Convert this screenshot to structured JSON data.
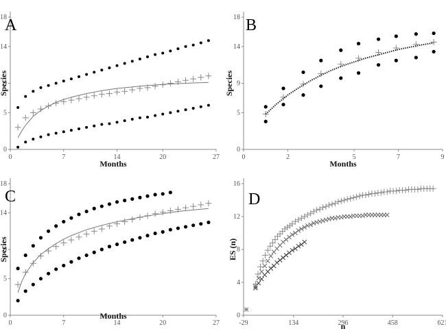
{
  "chart_data": [
    {
      "panel_label": "A",
      "type": "scatter",
      "xlabel": "Months",
      "ylabel": "Species",
      "xticks": [
        "0",
        "7",
        "14",
        "20",
        "27"
      ],
      "yticks": [
        "0",
        "5",
        "9",
        "14",
        "18"
      ],
      "xlim": [
        0,
        27
      ],
      "ylim": [
        0,
        18
      ],
      "grid": false,
      "series": [
        {
          "marker": "dot",
          "color": "#000000",
          "x": [
            1,
            2,
            3,
            4,
            5,
            6,
            7,
            8,
            9,
            10,
            11,
            12,
            13,
            14,
            15,
            16,
            17,
            18,
            19,
            20,
            21,
            22,
            23,
            24,
            25,
            26
          ],
          "y": [
            5.7,
            7.2,
            7.9,
            8.4,
            8.7,
            9.0,
            9.3,
            9.6,
            9.9,
            10.2,
            10.5,
            10.8,
            11.1,
            11.4,
            11.7,
            12.0,
            12.3,
            12.6,
            12.9,
            13.1,
            13.4,
            13.7,
            14.0,
            14.2,
            14.5,
            14.8
          ]
        },
        {
          "marker": "plus",
          "color": "#888888",
          "x": [
            1,
            2,
            3,
            4,
            5,
            6,
            7,
            8,
            9,
            10,
            11,
            12,
            13,
            14,
            15,
            16,
            17,
            18,
            19,
            20,
            21,
            22,
            23,
            24,
            25,
            26
          ],
          "y": [
            3.0,
            4.3,
            5.0,
            5.5,
            5.9,
            6.3,
            6.5,
            6.7,
            6.9,
            7.1,
            7.3,
            7.5,
            7.6,
            7.8,
            7.9,
            8.1,
            8.3,
            8.4,
            8.6,
            8.8,
            9.0,
            9.2,
            9.4,
            9.6,
            9.8,
            10.0
          ]
        },
        {
          "marker": "dot",
          "color": "#000000",
          "x": [
            1,
            2,
            3,
            4,
            5,
            6,
            7,
            8,
            9,
            10,
            11,
            12,
            13,
            14,
            15,
            16,
            17,
            18,
            19,
            20,
            21,
            22,
            23,
            24,
            25,
            26
          ],
          "y": [
            0.3,
            1.0,
            1.4,
            1.7,
            2.0,
            2.2,
            2.4,
            2.6,
            2.8,
            3.0,
            3.2,
            3.4,
            3.5,
            3.7,
            3.9,
            4.1,
            4.3,
            4.4,
            4.6,
            4.8,
            5.0,
            5.2,
            5.4,
            5.6,
            5.8,
            6.0
          ]
        },
        {
          "marker": "line",
          "color": "#777777",
          "x": [
            1,
            1.5,
            2,
            3,
            4,
            5,
            6,
            7,
            8,
            10,
            12,
            14,
            16,
            18,
            20,
            22,
            24,
            26
          ],
          "y": [
            1.6,
            2.5,
            3.3,
            4.5,
            5.3,
            5.9,
            6.4,
            6.8,
            7.1,
            7.6,
            8.0,
            8.3,
            8.5,
            8.7,
            8.85,
            8.95,
            9.05,
            9.1
          ]
        }
      ]
    },
    {
      "panel_label": "B",
      "type": "scatter",
      "xlabel": "Months",
      "ylabel": "Species",
      "xticks": [
        "0",
        "2",
        "5",
        "7",
        "9"
      ],
      "yticks": [
        "0",
        "5",
        "9",
        "14",
        "18"
      ],
      "xlim": [
        0,
        9
      ],
      "ylim": [
        0,
        18
      ],
      "grid": false,
      "series": [
        {
          "marker": "dot",
          "color": "#000000",
          "x": [
            1,
            1.8,
            2.7,
            3.5,
            4.4,
            5.2,
            6.1,
            6.9,
            7.8,
            8.6
          ],
          "y": [
            5.8,
            8.3,
            10.5,
            12.1,
            13.5,
            14.4,
            15.0,
            15.4,
            15.7,
            15.8
          ]
        },
        {
          "marker": "plus",
          "color": "#888888",
          "x": [
            1,
            1.8,
            2.7,
            3.5,
            4.4,
            5.2,
            6.1,
            6.9,
            7.8,
            8.6
          ],
          "y": [
            4.8,
            7.1,
            8.9,
            10.3,
            11.6,
            12.4,
            13.2,
            13.8,
            14.3,
            14.6
          ]
        },
        {
          "marker": "dot",
          "color": "#000000",
          "x": [
            1,
            1.8,
            2.7,
            3.5,
            4.4,
            5.2,
            6.1,
            6.9,
            7.8,
            8.6
          ],
          "y": [
            3.8,
            6.1,
            7.4,
            8.6,
            9.7,
            10.4,
            11.5,
            12.1,
            12.5,
            13.3
          ]
        },
        {
          "marker": "dotted-line",
          "color": "#222222",
          "x": [
            1,
            1.5,
            2,
            2.5,
            3,
            3.5,
            4,
            4.5,
            5,
            5.5,
            6,
            6.5,
            7,
            7.5,
            8,
            8.6
          ],
          "y": [
            4.8,
            6.2,
            7.4,
            8.4,
            9.3,
            10.1,
            10.8,
            11.4,
            11.9,
            12.4,
            12.8,
            13.2,
            13.6,
            13.9,
            14.2,
            14.5
          ]
        }
      ]
    },
    {
      "panel_label": "C",
      "type": "scatter",
      "xlabel": "Months",
      "ylabel": "Species",
      "xticks": [
        "0",
        "7",
        "14",
        "20",
        "27"
      ],
      "yticks": [
        "0",
        "5",
        "9",
        "14",
        "18"
      ],
      "xlim": [
        0,
        27
      ],
      "ylim": [
        0,
        18
      ],
      "grid": false,
      "series": [
        {
          "marker": "dot",
          "color": "#000000",
          "x": [
            1,
            2,
            3,
            4,
            5,
            6,
            7,
            8,
            9,
            10,
            11,
            12,
            13,
            14,
            15,
            16,
            17,
            18,
            19,
            20,
            21
          ],
          "y": [
            6.4,
            8.2,
            9.5,
            10.6,
            11.5,
            12.2,
            12.8,
            13.3,
            13.8,
            14.2,
            14.6,
            14.9,
            15.2,
            15.5,
            15.7,
            15.9,
            16.1,
            16.3,
            16.5,
            16.6,
            16.8
          ]
        },
        {
          "marker": "plus",
          "color": "#888888",
          "x": [
            1,
            2,
            3,
            4,
            5,
            6,
            7,
            8,
            9,
            10,
            11,
            12,
            13,
            14,
            15,
            16,
            17,
            18,
            19,
            20,
            21,
            22,
            23,
            24,
            25,
            26
          ],
          "y": [
            4.2,
            5.9,
            7.1,
            8.1,
            8.8,
            9.4,
            9.9,
            10.3,
            10.7,
            11.1,
            11.5,
            11.8,
            12.2,
            12.5,
            12.8,
            13.1,
            13.4,
            13.6,
            13.9,
            14.1,
            14.3,
            14.5,
            14.7,
            14.9,
            15.1,
            15.3
          ]
        },
        {
          "marker": "dot",
          "color": "#000000",
          "x": [
            1,
            2,
            3,
            4,
            5,
            6,
            7,
            8,
            9,
            10,
            11,
            12,
            13,
            14,
            15,
            16,
            17,
            18,
            19,
            20,
            21,
            22,
            23,
            24,
            25,
            26
          ],
          "y": [
            2.0,
            3.3,
            4.2,
            5.0,
            5.7,
            6.3,
            6.8,
            7.3,
            7.8,
            8.2,
            8.6,
            9.0,
            9.4,
            9.7,
            10.0,
            10.3,
            10.6,
            10.9,
            11.2,
            11.4,
            11.7,
            11.9,
            12.1,
            12.3,
            12.5,
            12.7
          ]
        },
        {
          "marker": "line",
          "color": "#777777",
          "x": [
            1,
            1.5,
            2,
            3,
            4,
            5,
            6,
            7,
            8,
            10,
            12,
            14,
            16,
            18,
            20,
            22,
            24,
            26
          ],
          "y": [
            3.1,
            4.6,
            5.7,
            7.2,
            8.3,
            9.1,
            9.8,
            10.4,
            10.9,
            11.7,
            12.3,
            12.8,
            13.2,
            13.6,
            13.9,
            14.2,
            14.4,
            14.6
          ]
        }
      ]
    },
    {
      "panel_label": "D",
      "type": "scatter",
      "xlabel": "n",
      "ylabel": "ES (n)",
      "xticks": [
        "-29",
        "134",
        "296",
        "458",
        "621"
      ],
      "yticks": [
        "0",
        "4",
        "8",
        "12",
        "16"
      ],
      "xlim": [
        -29,
        621
      ],
      "ylim": [
        0,
        16
      ],
      "grid": false,
      "series": [
        {
          "marker": "plus",
          "color": "#888888",
          "x": [
            10,
            18,
            26,
            34,
            42,
            50,
            58,
            66,
            74,
            82,
            90,
            98,
            106,
            114,
            122,
            130,
            140,
            150,
            160,
            170,
            180,
            190,
            200,
            210,
            220,
            230,
            240,
            250,
            260,
            270,
            280,
            290,
            300,
            310,
            320,
            330,
            340,
            350,
            360,
            370,
            380,
            390,
            400,
            410,
            420,
            430,
            440,
            450,
            460,
            470,
            480,
            490,
            500,
            510,
            520,
            530,
            540,
            550,
            560,
            570,
            580,
            590
          ],
          "y": [
            3.8,
            5.0,
            5.9,
            6.6,
            7.3,
            7.9,
            8.4,
            8.8,
            9.2,
            9.6,
            9.9,
            10.2,
            10.5,
            10.7,
            10.9,
            11.1,
            11.4,
            11.6,
            11.8,
            12.0,
            12.2,
            12.4,
            12.6,
            12.8,
            12.9,
            13.1,
            13.2,
            13.4,
            13.5,
            13.6,
            13.8,
            13.9,
            14.0,
            14.1,
            14.2,
            14.3,
            14.4,
            14.5,
            14.6,
            14.6,
            14.7,
            14.8,
            14.8,
            14.9,
            14.9,
            15.0,
            15.0,
            15.1,
            15.1,
            15.1,
            15.2,
            15.2,
            15.2,
            15.3,
            15.3,
            15.3,
            15.3,
            15.4,
            15.4,
            15.4,
            15.4,
            15.4
          ]
        },
        {
          "marker": "cross",
          "color": "#666666",
          "x": [
            10,
            20,
            30,
            40,
            50,
            60,
            70,
            80,
            90,
            100,
            110,
            120,
            130,
            140,
            150,
            160,
            170,
            180,
            190,
            200,
            210,
            220,
            230,
            240,
            250,
            260,
            270,
            280,
            290,
            300,
            310,
            320,
            330,
            340,
            350,
            360,
            370,
            380,
            390,
            400,
            410,
            420,
            430,
            440
          ],
          "y": [
            3.5,
            4.5,
            5.3,
            6.0,
            6.6,
            7.2,
            7.7,
            8.1,
            8.5,
            8.9,
            9.2,
            9.5,
            9.8,
            10.0,
            10.3,
            10.5,
            10.7,
            10.9,
            11.0,
            11.2,
            11.3,
            11.4,
            11.5,
            11.6,
            11.7,
            11.8,
            11.8,
            11.9,
            11.9,
            12.0,
            12.0,
            12.0,
            12.1,
            12.1,
            12.1,
            12.1,
            12.2,
            12.2,
            12.2,
            12.2,
            12.2,
            12.2,
            12.2,
            12.2
          ]
        },
        {
          "marker": "cross",
          "color": "#333333",
          "x": [
            10,
            20,
            30,
            40,
            50,
            60,
            70,
            80,
            90,
            100,
            110,
            120,
            130,
            140,
            150,
            160,
            170
          ],
          "y": [
            3.3,
            3.9,
            4.4,
            4.9,
            5.3,
            5.7,
            6.0,
            6.4,
            6.7,
            7.0,
            7.3,
            7.6,
            7.9,
            8.1,
            8.4,
            8.6,
            8.9
          ]
        },
        {
          "marker": "star",
          "color": "#888888",
          "x": [
            -20
          ],
          "y": [
            0.7
          ]
        }
      ]
    }
  ]
}
